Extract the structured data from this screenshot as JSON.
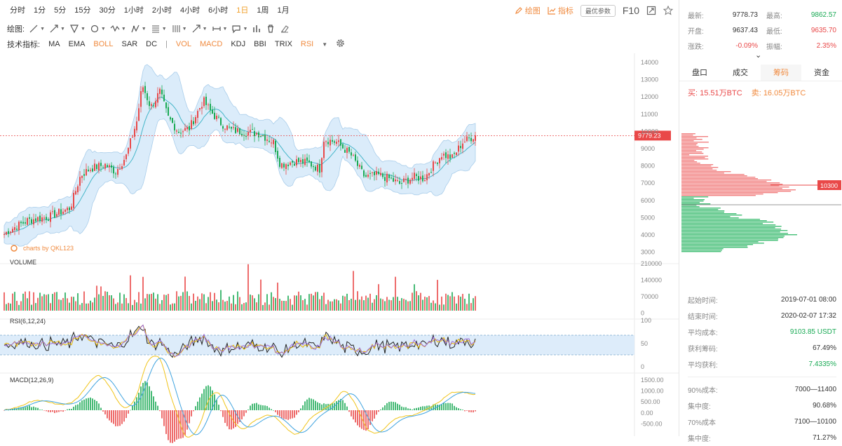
{
  "timeframes": [
    "分时",
    "1分",
    "5分",
    "15分",
    "30分",
    "1小时",
    "2小时",
    "4小时",
    "6小时",
    "1日",
    "1周",
    "1月"
  ],
  "active_timeframe": "1日",
  "header": {
    "draw_label": "绘图",
    "indicator_label": "指标",
    "pref_button": "最优参数",
    "f10": "F10"
  },
  "draw_toolbar_label": "绘图:",
  "indicator_toolbar": {
    "label": "技术指标:",
    "main_indicators": [
      "MA",
      "EMA",
      "BOLL",
      "SAR",
      "DC"
    ],
    "sub_indicators": [
      "VOL",
      "MACD",
      "KDJ",
      "BBI",
      "TRIX",
      "RSI"
    ],
    "active": [
      "BOLL",
      "VOL",
      "MACD",
      "RSI"
    ]
  },
  "chart": {
    "watermark": "charts by QKL123",
    "current_price_label": "9779.23",
    "chip_level_label": "10300",
    "price_axis": [
      "14000",
      "13000",
      "12000",
      "11000",
      "10000",
      "9000",
      "8000",
      "7000",
      "6000",
      "5000",
      "4000",
      "3000"
    ],
    "volume_label": "VOLUME",
    "volume_axis": [
      "210000",
      "140000",
      "70000",
      "0"
    ],
    "rsi_label": "RSI(6,12,24)",
    "rsi_axis": [
      "100",
      "50",
      "0"
    ],
    "macd_label": "MACD(12,26,9)",
    "macd_axis": [
      "1500.00",
      "1000.00",
      "500.00",
      "0.00",
      "-500.00"
    ],
    "colors": {
      "up": "#e94848",
      "down": "#1aaa55",
      "band": "#cfe6f8",
      "mid": "#45b6c9"
    }
  },
  "stats": {
    "latest_k": "最新:",
    "latest_v": "9778.73",
    "high_k": "最高:",
    "high_v": "9862.57",
    "open_k": "开盘:",
    "open_v": "9637.43",
    "low_k": "最低:",
    "low_v": "9635.70",
    "chg_k": "涨跌:",
    "chg_v": "-0.09%",
    "amp_k": "振幅:",
    "amp_v": "2.35%"
  },
  "tabs": [
    "盘口",
    "成交",
    "筹码",
    "资金"
  ],
  "active_tab": "筹码",
  "chips": {
    "buy": "买: 15.51万BTC",
    "sell": "卖: 16.05万BTC"
  },
  "detail": [
    {
      "k": "起始时间:",
      "v": "2019-07-01 08:00",
      "green": false
    },
    {
      "k": "结束时间:",
      "v": "2020-02-07 17:32",
      "green": false
    },
    {
      "k": "平均成本:",
      "v": "9103.85 USDT",
      "green": true
    },
    {
      "k": "获利筹码:",
      "v": "67.49%",
      "green": false
    },
    {
      "k": "平均获利:",
      "v": "7.4335%",
      "green": true
    }
  ],
  "detail2": [
    {
      "k": "90%成本:",
      "v": "7000—11400"
    },
    {
      "k": "集中度:",
      "v": "90.68%"
    },
    {
      "k": "70%成本",
      "v": "7100—10100"
    },
    {
      "k": "集中度:",
      "v": "71.27%"
    }
  ]
}
